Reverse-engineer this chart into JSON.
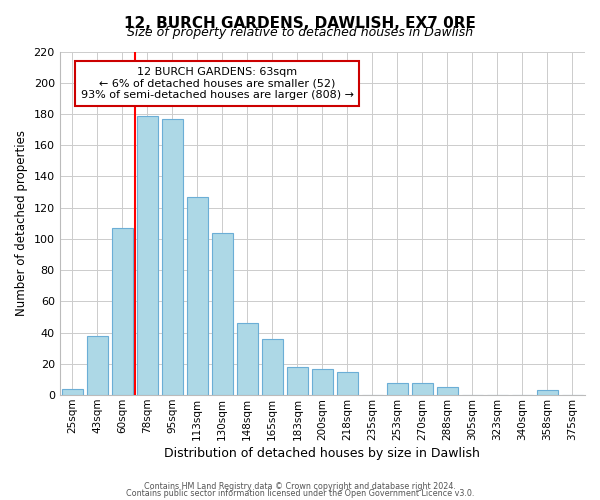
{
  "title": "12, BURCH GARDENS, DAWLISH, EX7 0RE",
  "subtitle": "Size of property relative to detached houses in Dawlish",
  "xlabel": "Distribution of detached houses by size in Dawlish",
  "ylabel": "Number of detached properties",
  "bar_labels": [
    "25sqm",
    "43sqm",
    "60sqm",
    "78sqm",
    "95sqm",
    "113sqm",
    "130sqm",
    "148sqm",
    "165sqm",
    "183sqm",
    "200sqm",
    "218sqm",
    "235sqm",
    "253sqm",
    "270sqm",
    "288sqm",
    "305sqm",
    "323sqm",
    "340sqm",
    "358sqm",
    "375sqm"
  ],
  "bar_heights": [
    4,
    38,
    107,
    179,
    177,
    127,
    104,
    46,
    36,
    18,
    17,
    15,
    0,
    8,
    8,
    5,
    0,
    0,
    0,
    3,
    0
  ],
  "bar_color": "#add8e6",
  "bar_edge_color": "#6baed6",
  "red_line_index": 2,
  "ylim": [
    0,
    220
  ],
  "yticks": [
    0,
    20,
    40,
    60,
    80,
    100,
    120,
    140,
    160,
    180,
    200,
    220
  ],
  "annotation_title": "12 BURCH GARDENS: 63sqm",
  "annotation_line1": "← 6% of detached houses are smaller (52)",
  "annotation_line2": "93% of semi-detached houses are larger (808) →",
  "annotation_box_edge": "#cc0000",
  "footer1": "Contains HM Land Registry data © Crown copyright and database right 2024.",
  "footer2": "Contains public sector information licensed under the Open Government Licence v3.0."
}
